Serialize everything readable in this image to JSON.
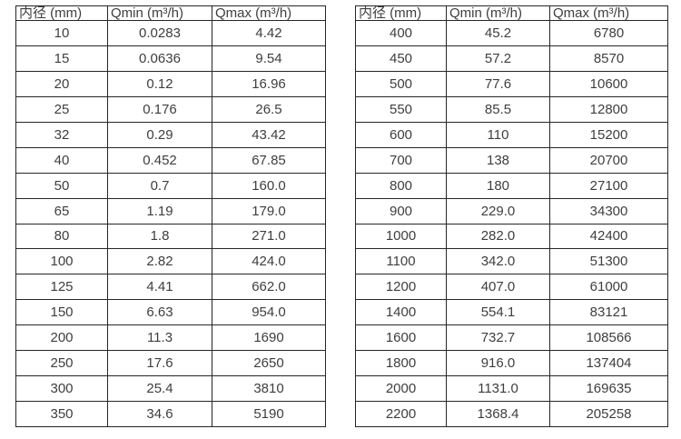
{
  "page": {
    "background_color": "#ffffff",
    "text_color": "#3e3e3e",
    "border_color": "#262626"
  },
  "tables": [
    {
      "name": "flow-rate-table-small-diameters",
      "headers": [
        "内径 (mm)",
        "Qmin (m³/h)",
        "Qmax (m³/h)"
      ],
      "rows": [
        [
          "10",
          "0.0283",
          "4.42"
        ],
        [
          "15",
          "0.0636",
          "9.54"
        ],
        [
          "20",
          "0.12",
          "16.96"
        ],
        [
          "25",
          "0.176",
          "26.5"
        ],
        [
          "32",
          "0.29",
          "43.42"
        ],
        [
          "40",
          "0.452",
          "67.85"
        ],
        [
          "50",
          "0.7",
          "160.0"
        ],
        [
          "65",
          "1.19",
          "179.0"
        ],
        [
          "80",
          "1.8",
          "271.0"
        ],
        [
          "100",
          "2.82",
          "424.0"
        ],
        [
          "125",
          "4.41",
          "662.0"
        ],
        [
          "150",
          "6.63",
          "954.0"
        ],
        [
          "200",
          "11.3",
          "1690"
        ],
        [
          "250",
          "17.6",
          "2650"
        ],
        [
          "300",
          "25.4",
          "3810"
        ],
        [
          "350",
          "34.6",
          "5190"
        ]
      ]
    },
    {
      "name": "flow-rate-table-large-diameters",
      "headers": [
        "内径 (mm)",
        "Qmin (m³/h)",
        "Qmax (m³/h)"
      ],
      "rows": [
        [
          "400",
          "45.2",
          "6780"
        ],
        [
          "450",
          "57.2",
          "8570"
        ],
        [
          "500",
          "77.6",
          "10600"
        ],
        [
          "550",
          "85.5",
          "12800"
        ],
        [
          "600",
          "110",
          "15200"
        ],
        [
          "700",
          "138",
          "20700"
        ],
        [
          "800",
          "180",
          "27100"
        ],
        [
          "900",
          "229.0",
          "34300"
        ],
        [
          "1000",
          "282.0",
          "42400"
        ],
        [
          "1100",
          "342.0",
          "51300"
        ],
        [
          "1200",
          "407.0",
          "61000"
        ],
        [
          "1400",
          "554.1",
          "83121"
        ],
        [
          "1600",
          "732.7",
          "108566"
        ],
        [
          "1800",
          "916.0",
          "137404"
        ],
        [
          "2000",
          "1131.0",
          "169635"
        ],
        [
          "2200",
          "1368.4",
          "205258"
        ]
      ]
    }
  ]
}
